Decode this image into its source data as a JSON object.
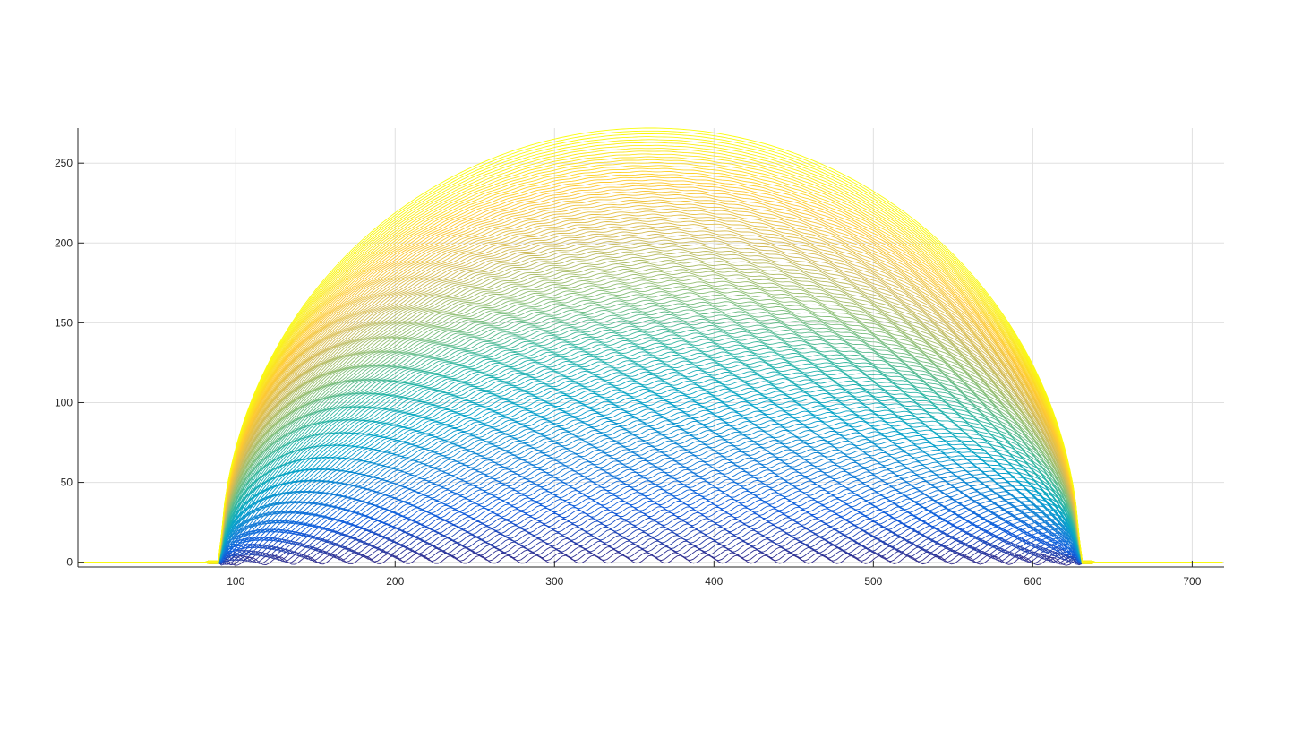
{
  "chart_data": {
    "type": "line",
    "title": "",
    "xlabel": "",
    "ylabel": "",
    "xlim": [
      1,
      720
    ],
    "ylim": [
      -3,
      272
    ],
    "grid": true,
    "legend": "none",
    "xticks": [
      100,
      200,
      300,
      400,
      500,
      600,
      700
    ],
    "yticks": [
      0,
      50,
      100,
      150,
      200,
      250
    ],
    "colormap": "parula",
    "series_description": {
      "count": 150,
      "peak_max": 272,
      "support_start": 91,
      "support_end": 630,
      "center": 360
    }
  },
  "colors": {
    "axis": "#262626",
    "grid": "#e0e0e0",
    "parula_stops": [
      "#352a87",
      "#0f5cdd",
      "#1481d6",
      "#06a4ca",
      "#2eb7a4",
      "#87bf77",
      "#d1bb59",
      "#fec832",
      "#f9fb0e"
    ]
  }
}
